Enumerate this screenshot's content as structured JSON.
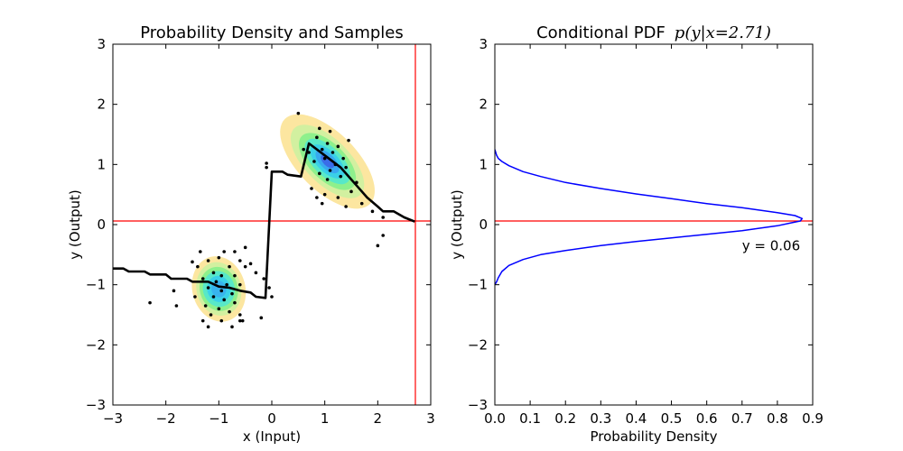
{
  "chart_data": [
    {
      "type": "scatter",
      "title": "Probability Density and Samples",
      "xlabel": "x (Input)",
      "ylabel": "y (Output)",
      "xlim": [
        -3,
        3
      ],
      "ylim": [
        -3,
        3
      ],
      "xticks": [
        "−3",
        "−2",
        "−1",
        "0",
        "1",
        "2",
        "3"
      ],
      "yticks": [
        "−3",
        "−2",
        "−1",
        "0",
        "1",
        "2",
        "3"
      ],
      "grid": false,
      "density_contours": [
        {
          "center": [
            -1.0,
            -1.07
          ],
          "levels": [
            {
              "rx": 0.5,
              "ry": 0.55,
              "rot": -15,
              "color": "#fce6a0"
            },
            {
              "rx": 0.42,
              "ry": 0.45,
              "rot": -15,
              "color": "#d2f0a0"
            },
            {
              "rx": 0.36,
              "ry": 0.37,
              "rot": -15,
              "color": "#8ef08c"
            },
            {
              "rx": 0.3,
              "ry": 0.3,
              "rot": -15,
              "color": "#58e8c8"
            },
            {
              "rx": 0.22,
              "ry": 0.22,
              "rot": -15,
              "color": "#3ad0e8"
            },
            {
              "rx": 0.14,
              "ry": 0.14,
              "rot": -15,
              "color": "#38b4ee"
            }
          ]
        },
        {
          "center": [
            1.05,
            1.05
          ],
          "levels": [
            {
              "rx": 0.55,
              "ry": 1.0,
              "rot": -45,
              "color": "#fce6a0"
            },
            {
              "rx": 0.42,
              "ry": 0.78,
              "rot": -45,
              "color": "#d2f0a0"
            },
            {
              "rx": 0.34,
              "ry": 0.6,
              "rot": -45,
              "color": "#8ef08c"
            },
            {
              "rx": 0.27,
              "ry": 0.48,
              "rot": -45,
              "color": "#58e8c8"
            },
            {
              "rx": 0.2,
              "ry": 0.36,
              "rot": -45,
              "color": "#3ad0e8"
            },
            {
              "rx": 0.14,
              "ry": 0.25,
              "rot": -45,
              "color": "#38a8f0"
            },
            {
              "rx": 0.08,
              "ry": 0.14,
              "rot": -45,
              "color": "#3a6ce8"
            }
          ]
        }
      ],
      "mode_curve": [
        [
          -3.0,
          -0.73
        ],
        [
          -2.8,
          -0.73
        ],
        [
          -2.7,
          -0.78
        ],
        [
          -2.4,
          -0.78
        ],
        [
          -2.3,
          -0.83
        ],
        [
          -2.0,
          -0.83
        ],
        [
          -1.9,
          -0.9
        ],
        [
          -1.6,
          -0.9
        ],
        [
          -1.5,
          -0.95
        ],
        [
          -1.2,
          -0.95
        ],
        [
          -1.0,
          -1.03
        ],
        [
          -0.8,
          -1.05
        ],
        [
          -0.6,
          -1.1
        ],
        [
          -0.4,
          -1.13
        ],
        [
          -0.3,
          -1.2
        ],
        [
          -0.12,
          -1.22
        ],
        [
          0.0,
          0.88
        ],
        [
          0.2,
          0.88
        ],
        [
          0.3,
          0.83
        ],
        [
          0.55,
          0.8
        ],
        [
          0.7,
          1.35
        ],
        [
          1.0,
          1.15
        ],
        [
          1.3,
          0.95
        ],
        [
          1.6,
          0.65
        ],
        [
          1.8,
          0.45
        ],
        [
          2.0,
          0.3
        ],
        [
          2.1,
          0.22
        ],
        [
          2.3,
          0.22
        ],
        [
          2.5,
          0.12
        ],
        [
          2.7,
          0.05
        ]
      ],
      "samples": [
        [
          -1.35,
          -0.45
        ],
        [
          -0.9,
          -0.45
        ],
        [
          -0.7,
          -0.45
        ],
        [
          -1.0,
          -0.55
        ],
        [
          -1.2,
          -0.6
        ],
        [
          -0.6,
          -0.6
        ],
        [
          -1.4,
          -0.7
        ],
        [
          -0.8,
          -0.7
        ],
        [
          -0.5,
          -0.7
        ],
        [
          -1.1,
          -0.8
        ],
        [
          -0.95,
          -0.85
        ],
        [
          -0.7,
          -0.85
        ],
        [
          -1.3,
          -0.9
        ],
        [
          -1.05,
          -0.95
        ],
        [
          -0.85,
          -1.0
        ],
        [
          -0.6,
          -1.0
        ],
        [
          -1.2,
          -1.05
        ],
        [
          -0.95,
          -1.1
        ],
        [
          -0.75,
          -1.15
        ],
        [
          -1.1,
          -1.2
        ],
        [
          -0.9,
          -1.25
        ],
        [
          -0.7,
          -1.3
        ],
        [
          -1.25,
          -1.35
        ],
        [
          -1.0,
          -1.4
        ],
        [
          -0.8,
          -1.45
        ],
        [
          -1.15,
          -1.5
        ],
        [
          -0.6,
          -1.5
        ],
        [
          -1.3,
          -1.6
        ],
        [
          -0.95,
          -1.6
        ],
        [
          -0.75,
          -1.7
        ],
        [
          -1.85,
          -1.1
        ],
        [
          -2.3,
          -1.3
        ],
        [
          -1.8,
          -1.35
        ],
        [
          -1.2,
          -1.7
        ],
        [
          -0.55,
          -1.6
        ],
        [
          -0.2,
          -1.55
        ],
        [
          -0.05,
          -1.05
        ],
        [
          0.0,
          -1.2
        ],
        [
          -0.5,
          -0.38
        ],
        [
          -1.5,
          -0.62
        ],
        [
          -0.4,
          -0.65
        ],
        [
          -0.3,
          -0.8
        ],
        [
          -0.6,
          -1.6
        ],
        [
          -1.45,
          -1.2
        ],
        [
          -0.15,
          -0.9
        ],
        [
          0.5,
          1.85
        ],
        [
          0.9,
          1.6
        ],
        [
          1.1,
          1.55
        ],
        [
          1.45,
          1.4
        ],
        [
          0.85,
          1.45
        ],
        [
          1.05,
          1.35
        ],
        [
          1.25,
          1.3
        ],
        [
          0.95,
          1.25
        ],
        [
          1.15,
          1.2
        ],
        [
          0.7,
          1.2
        ],
        [
          1.35,
          1.1
        ],
        [
          1.0,
          1.1
        ],
        [
          1.2,
          1.0
        ],
        [
          0.8,
          1.05
        ],
        [
          1.4,
          0.95
        ],
        [
          1.1,
          0.9
        ],
        [
          0.9,
          0.85
        ],
        [
          1.3,
          0.8
        ],
        [
          1.6,
          0.7
        ],
        [
          1.05,
          0.75
        ],
        [
          0.75,
          0.6
        ],
        [
          1.5,
          0.55
        ],
        [
          0.85,
          0.45
        ],
        [
          1.25,
          0.45
        ],
        [
          0.95,
          0.35
        ],
        [
          1.7,
          0.35
        ],
        [
          1.4,
          0.3
        ],
        [
          1.9,
          0.22
        ],
        [
          2.1,
          0.12
        ],
        [
          2.0,
          -0.35
        ],
        [
          2.1,
          -0.18
        ],
        [
          -0.1,
          0.95
        ],
        [
          -0.1,
          1.02
        ],
        [
          0.6,
          1.25
        ],
        [
          1.0,
          0.5
        ]
      ],
      "vertical_line_x": 2.71,
      "horizontal_line_y": 0.06
    },
    {
      "type": "line",
      "title": "Conditional PDF",
      "title_math": "p(y|x=2.71)",
      "xlabel": "Probability Density",
      "ylabel": "y (Output)",
      "xlim": [
        0.0,
        0.9
      ],
      "ylim": [
        -3,
        3
      ],
      "xticks": [
        "0.0",
        "0.1",
        "0.2",
        "0.3",
        "0.4",
        "0.5",
        "0.6",
        "0.7",
        "0.8",
        "0.9"
      ],
      "yticks": [
        "−3",
        "−2",
        "−1",
        "0",
        "1",
        "2",
        "3"
      ],
      "grid": false,
      "series": [
        {
          "color": "#0000ff",
          "points": [
            [
              0.0,
              1.25
            ],
            [
              0.005,
              1.15
            ],
            [
              0.01,
              1.1
            ],
            [
              0.02,
              1.05
            ],
            [
              0.04,
              0.98
            ],
            [
              0.08,
              0.88
            ],
            [
              0.13,
              0.8
            ],
            [
              0.2,
              0.7
            ],
            [
              0.3,
              0.6
            ],
            [
              0.4,
              0.51
            ],
            [
              0.5,
              0.43
            ],
            [
              0.6,
              0.35
            ],
            [
              0.7,
              0.28
            ],
            [
              0.8,
              0.2
            ],
            [
              0.85,
              0.15
            ],
            [
              0.87,
              0.1
            ],
            [
              0.865,
              0.06
            ],
            [
              0.84,
              0.03
            ],
            [
              0.8,
              -0.02
            ],
            [
              0.7,
              -0.1
            ],
            [
              0.6,
              -0.16
            ],
            [
              0.5,
              -0.22
            ],
            [
              0.4,
              -0.28
            ],
            [
              0.3,
              -0.35
            ],
            [
              0.2,
              -0.43
            ],
            [
              0.13,
              -0.5
            ],
            [
              0.08,
              -0.58
            ],
            [
              0.04,
              -0.68
            ],
            [
              0.02,
              -0.78
            ],
            [
              0.01,
              -0.88
            ],
            [
              0.005,
              -0.95
            ],
            [
              0.0,
              -1.0
            ]
          ]
        }
      ],
      "horizontal_line_y": 0.06,
      "annotation": {
        "text": "y = 0.06",
        "x": 0.7,
        "y": -0.35
      }
    }
  ]
}
